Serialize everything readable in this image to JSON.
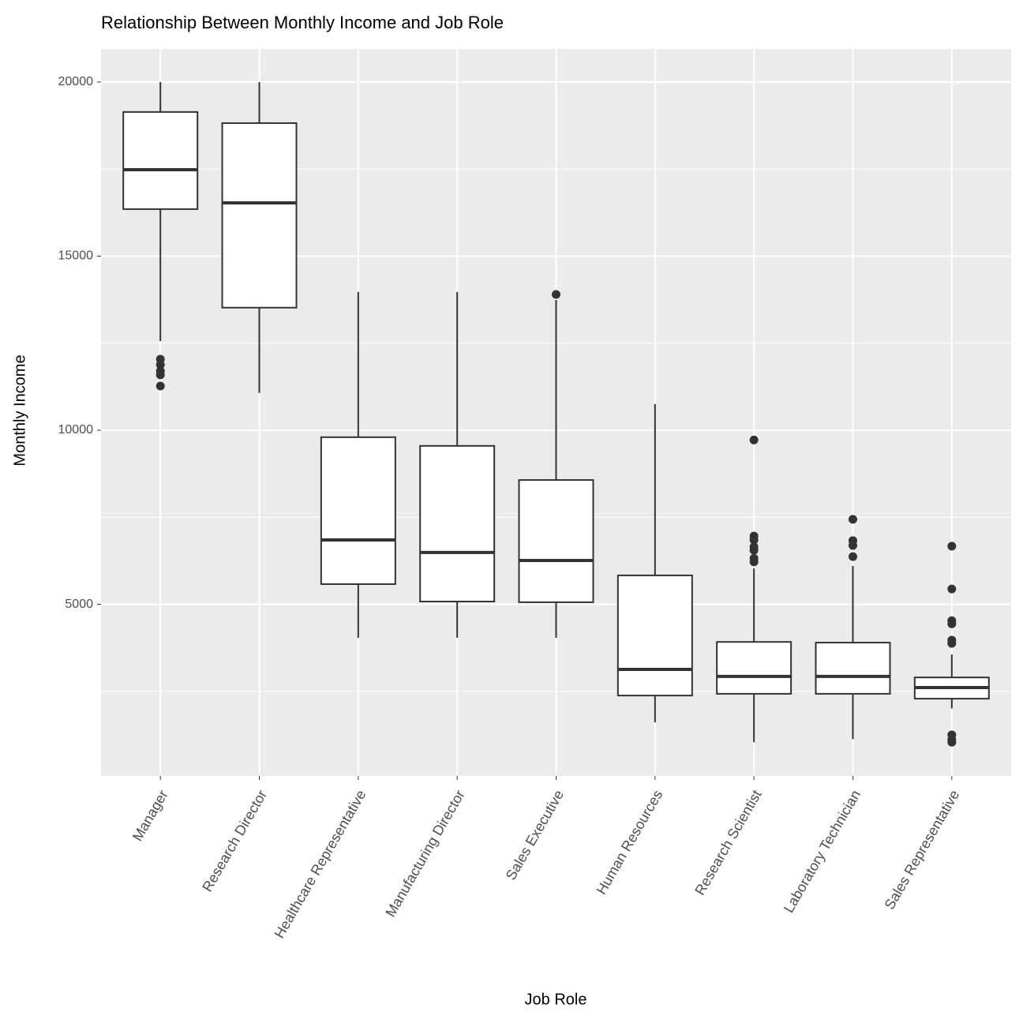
{
  "chart_data": {
    "type": "boxplot",
    "title": "Relationship Between Monthly Income and Job Role",
    "x_label": "Job Role",
    "y_label": "Monthly Income",
    "categories": [
      "Manager",
      "Research Director",
      "Healthcare Representative",
      "Manufacturing Director",
      "Sales Executive",
      "Human Resources",
      "Research Scientist",
      "Laboratory Technician",
      "Sales Representative"
    ],
    "whisker_low": [
      12560,
      11070,
      4040,
      4040,
      4040,
      1610,
      1040,
      1130,
      2010
    ],
    "q1": [
      16350,
      13520,
      5580,
      5080,
      5060,
      2380,
      2430,
      2430,
      2290
    ],
    "median": [
      17480,
      16530,
      6850,
      6490,
      6260,
      3130,
      2930,
      2930,
      2610
    ],
    "q3": [
      19140,
      18820,
      9800,
      9550,
      8570,
      5830,
      3920,
      3900,
      2900
    ],
    "whisker_high": [
      20000,
      20000,
      13970,
      13970,
      13740,
      10750,
      6030,
      6100,
      3560
    ],
    "outliers": [
      [
        12040,
        11880,
        11700,
        11590,
        11270
      ],
      [],
      [],
      [],
      [
        13900
      ],
      [],
      [
        9720,
        6960,
        6850,
        6650,
        6550,
        6320,
        6220
      ],
      [
        7440,
        6830,
        6690,
        6370
      ],
      [
        6670,
        5440,
        4530,
        4440,
        3970,
        3880,
        1250,
        1110,
        1040
      ]
    ],
    "box_color": "#ffffff",
    "line_color": "#333333",
    "ylim": [
      70,
      20950
    ],
    "yticks": [
      5000,
      10000,
      15000,
      20000
    ],
    "minor_yticks": [
      2500,
      7500,
      12500,
      17500
    ],
    "grid": true
  }
}
